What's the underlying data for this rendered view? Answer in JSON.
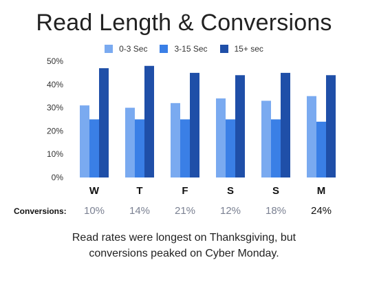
{
  "title": "Read Length & Conversions",
  "legend": [
    {
      "label": "0-3 Sec",
      "color": "#7aaaf0"
    },
    {
      "label": "3-15 Sec",
      "color": "#3a7fe6"
    },
    {
      "label": "15+ sec",
      "color": "#1f4fa8"
    }
  ],
  "chart_data": {
    "type": "bar",
    "title": "Read Length & Conversions",
    "categories": [
      "W",
      "T",
      "F",
      "S",
      "S",
      "M"
    ],
    "series": [
      {
        "name": "0-3 Sec",
        "values": [
          31,
          30,
          32,
          34,
          33,
          35
        ]
      },
      {
        "name": "3-15 Sec",
        "values": [
          25,
          25,
          25,
          25,
          25,
          24
        ]
      },
      {
        "name": "15+ sec",
        "values": [
          47,
          48,
          45,
          44,
          45,
          44
        ]
      }
    ],
    "ylim": [
      0,
      50
    ],
    "yticks": [
      "0%",
      "10%",
      "20%",
      "30%",
      "40%",
      "50%"
    ],
    "grid": false,
    "legend_position": "top"
  },
  "conversions": {
    "label": "Conversions:",
    "values": [
      "10%",
      "14%",
      "21%",
      "12%",
      "18%",
      "24%"
    ],
    "highlight_index": 5
  },
  "caption": {
    "line1": "Read rates were longest on Thanksgiving, but",
    "line2": "conversions peaked on Cyber Monday."
  }
}
